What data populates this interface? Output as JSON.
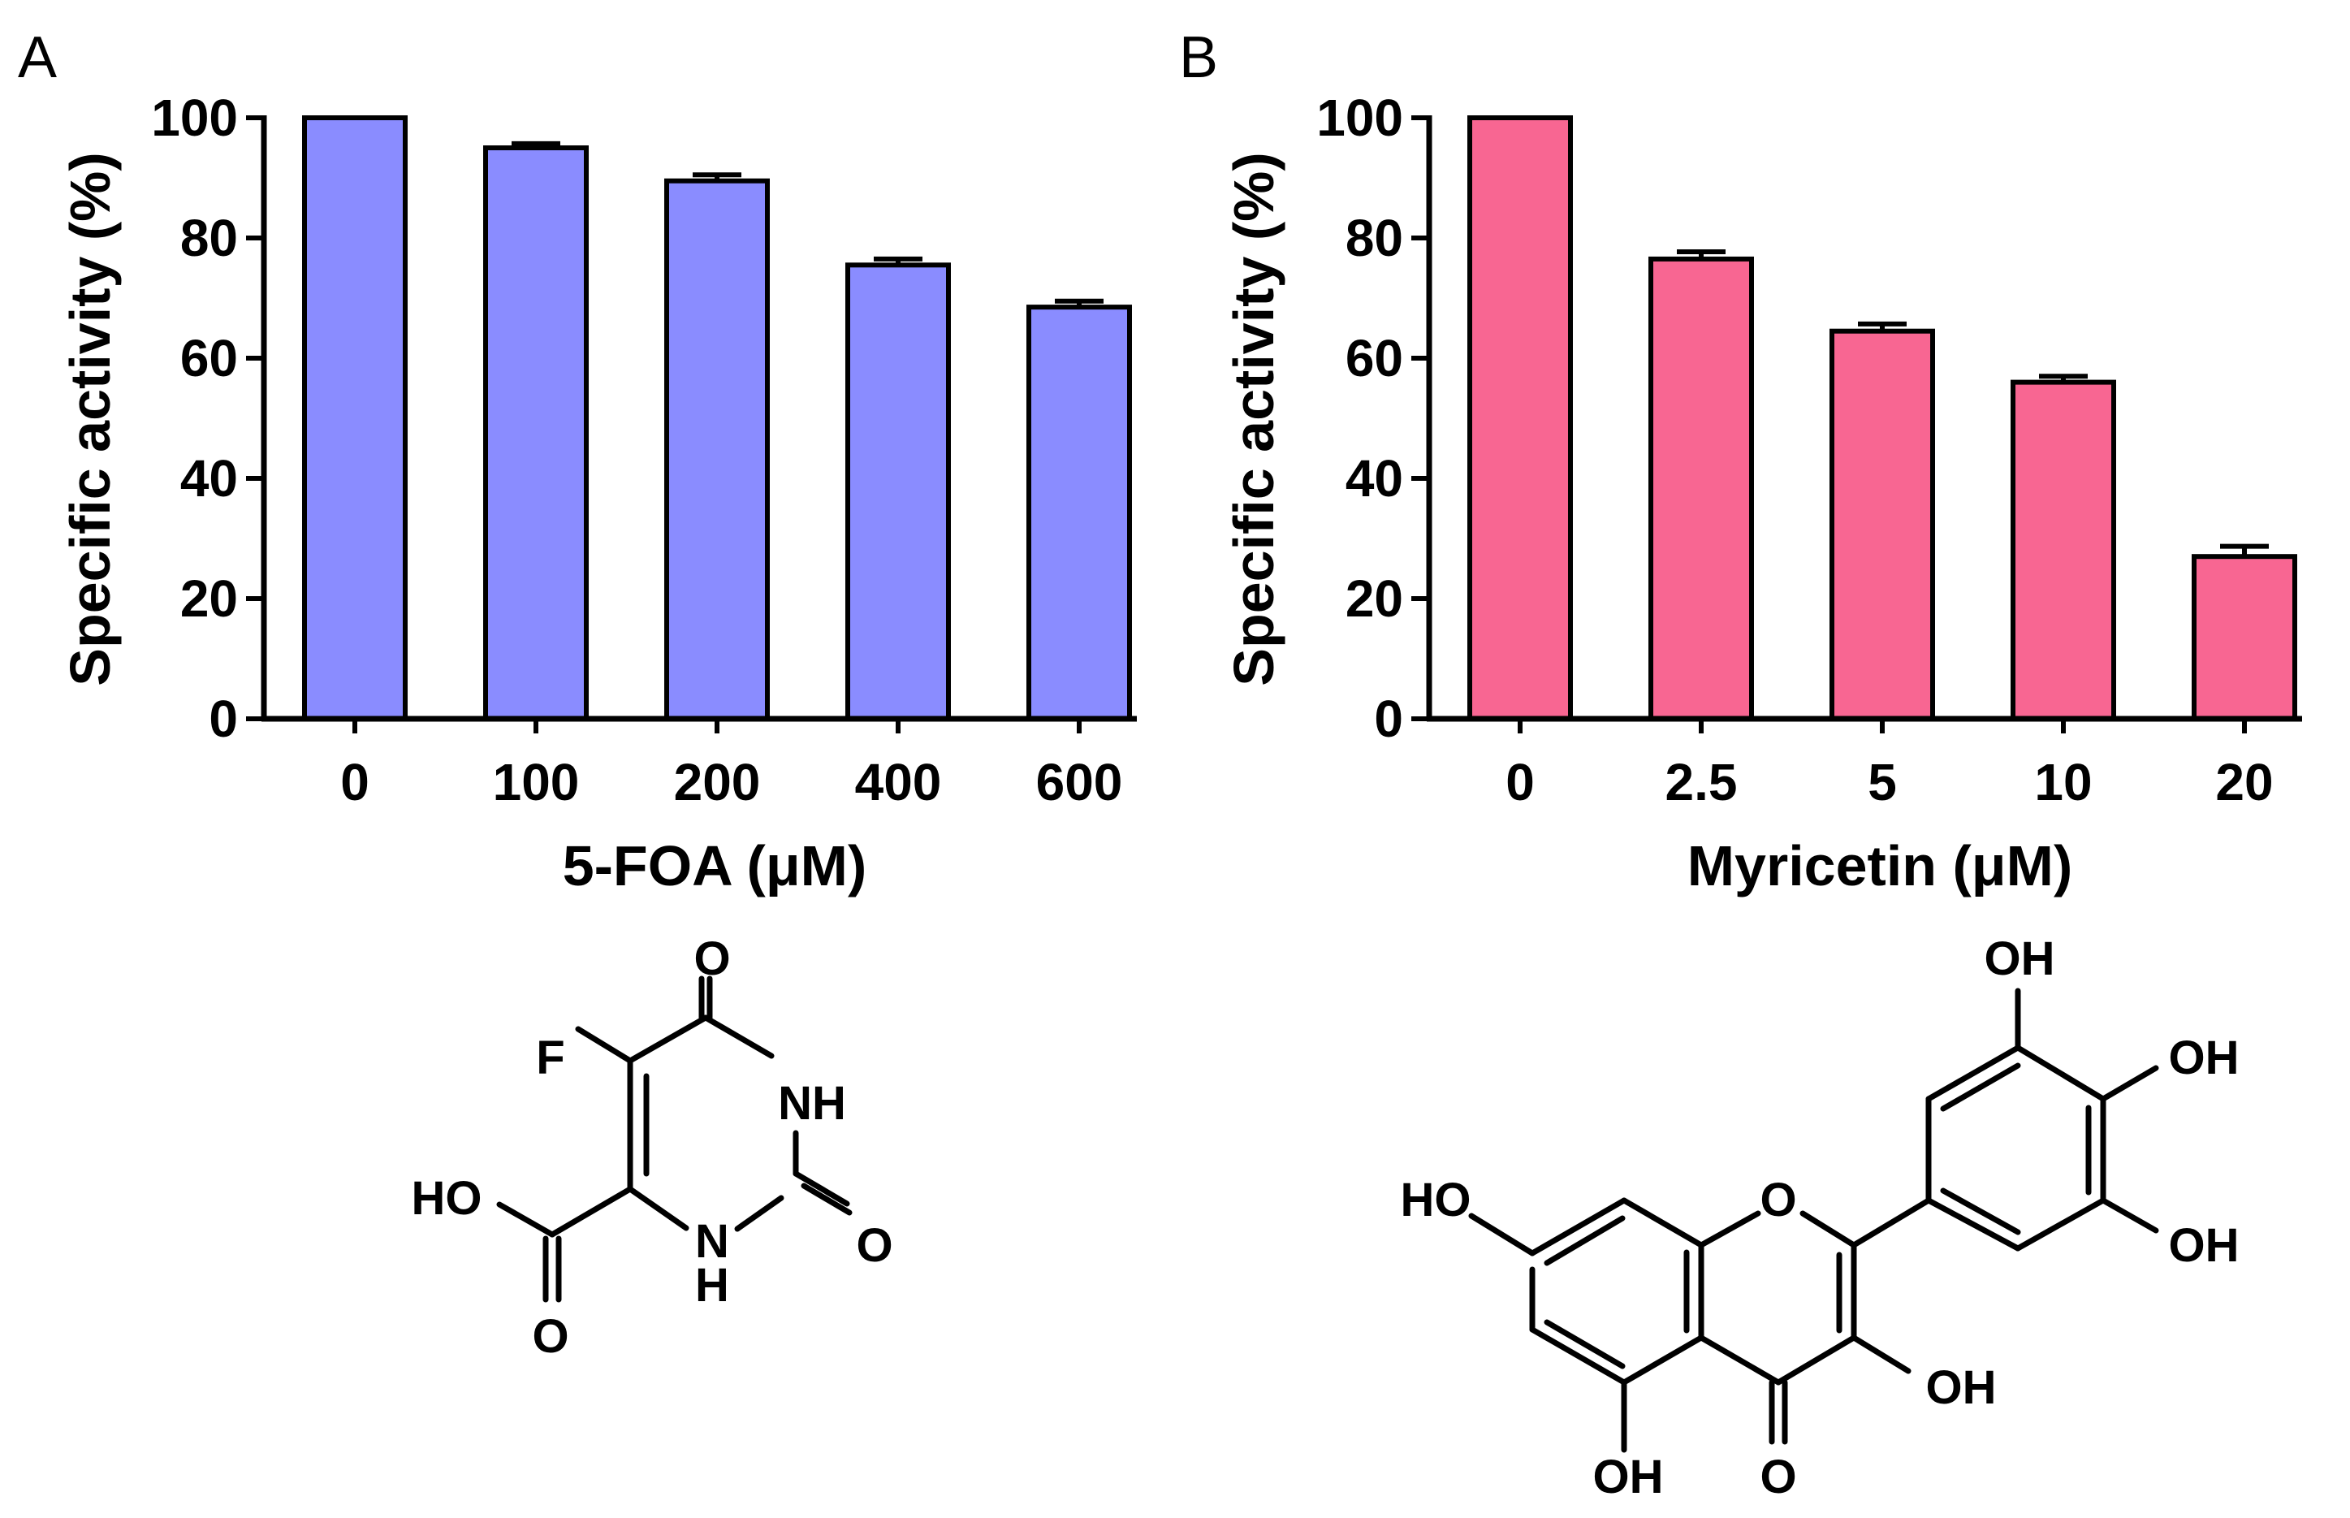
{
  "panels": [
    {
      "letter": "A",
      "chart_data": {
        "type": "bar",
        "categories": [
          "0",
          "100",
          "200",
          "400",
          "600"
        ],
        "values": [
          100,
          95,
          89.5,
          75.5,
          68.5
        ],
        "errors": [
          0,
          0.7,
          1,
          1,
          1
        ],
        "ylabel": "Specific activity (%)",
        "xlabel": "5-FOA (μM)",
        "ylim": [
          0,
          100
        ],
        "yticks": [
          0,
          20,
          40,
          60,
          80,
          100
        ],
        "bar_color": "#8a8cff"
      },
      "structure": {
        "atoms": {
          "o_top": "O",
          "f": "F",
          "nh_right": "NH",
          "ho_acid": "HO",
          "o_right": "O",
          "n_bottom": "N",
          "h_bottom": "H",
          "o_acid": "O"
        }
      }
    },
    {
      "letter": "B",
      "chart_data": {
        "type": "bar",
        "categories": [
          "0",
          "2.5",
          "5",
          "10",
          "20"
        ],
        "values": [
          100,
          76.5,
          64.5,
          56,
          27
        ],
        "errors": [
          0,
          1.2,
          1.2,
          1,
          1.7
        ],
        "ylabel": "Specific activity (%)",
        "xlabel": "Myricetin (μM)",
        "ylim": [
          0,
          100
        ],
        "yticks": [
          0,
          20,
          40,
          60,
          80,
          100
        ],
        "bar_color": "#f86692"
      },
      "structure": {
        "atoms": {
          "oh_top": "OH",
          "oh_right_top": "OH",
          "oh_right_bottom": "OH",
          "ho_left": "HO",
          "o_ring": "O",
          "oh_3": "OH",
          "oh_5": "OH",
          "o_carbonyl": "O"
        }
      }
    }
  ]
}
